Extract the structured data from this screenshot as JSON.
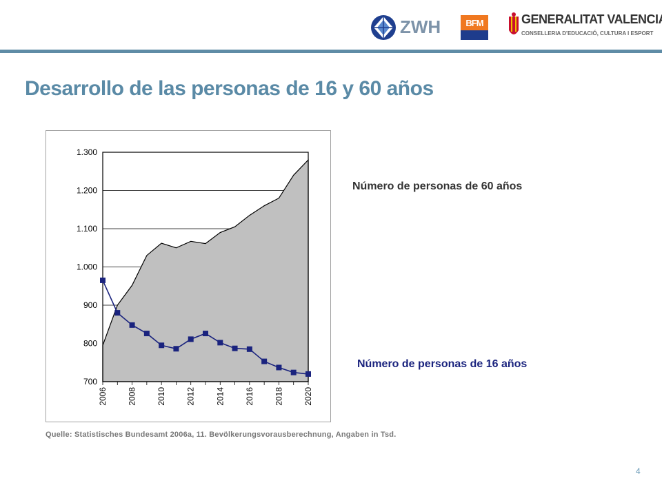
{
  "logos": {
    "zwh": "ZWH",
    "bfm": "BFM",
    "gv_name": "GENERALITAT VALENCIANA",
    "gv_sub": "CONSELLERIA D'EDUCACIÓ, CULTURA I ESPORT"
  },
  "page": {
    "title": "Desarrollo de las personas de 16 y 60 años",
    "source": "Quelle: Statistisches Bundesamt 2006a, 11. Bevölkerungsvorausberechnung, Angaben in Tsd.",
    "number": "4"
  },
  "colors": {
    "accent": "#5a8aa6",
    "area_fill": "#c0c0c0",
    "line16": "#1a237e"
  },
  "chart_data": {
    "type": "area",
    "x": [
      2006,
      2007,
      2008,
      2009,
      2010,
      2011,
      2012,
      2013,
      2014,
      2015,
      2016,
      2017,
      2018,
      2019,
      2020
    ],
    "xticks": [
      "2006",
      "2008",
      "2010",
      "2012",
      "2014",
      "2016",
      "2018",
      "2020"
    ],
    "yticks": [
      "700",
      "800",
      "900",
      "1.000",
      "1.100",
      "1.200",
      "1.300"
    ],
    "ylim": [
      700,
      1300
    ],
    "grid": true,
    "series": [
      {
        "name": "Número de personas de 60 años",
        "kind": "area",
        "values": [
          795,
          900,
          952,
          1030,
          1062,
          1050,
          1067,
          1061,
          1090,
          1105,
          1135,
          1160,
          1180,
          1240,
          1280
        ]
      },
      {
        "name": "Número de personas de 16 años",
        "kind": "line-markers",
        "values": [
          965,
          880,
          848,
          826,
          795,
          786,
          811,
          826,
          802,
          787,
          785,
          753,
          737,
          724,
          720
        ]
      }
    ]
  }
}
